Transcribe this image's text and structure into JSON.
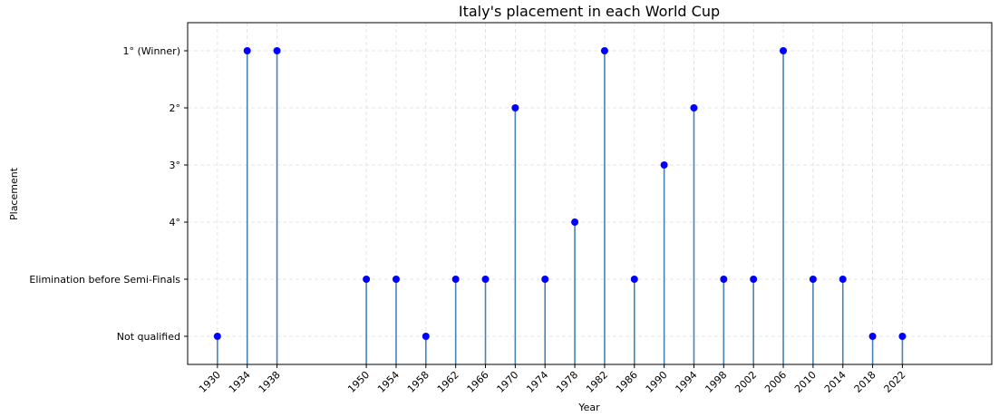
{
  "chart_data": {
    "type": "stem",
    "title": "Italy's placement in each World Cup",
    "xlabel": "Year",
    "ylabel": "Placement",
    "categories": [
      "Not qualified",
      "Elimination before Semi-Finals",
      "4°",
      "3°",
      "2°",
      "1° (Winner)"
    ],
    "x": [
      1930,
      1934,
      1938,
      1950,
      1954,
      1958,
      1962,
      1966,
      1970,
      1974,
      1978,
      1982,
      1986,
      1990,
      1994,
      1998,
      2002,
      2006,
      2010,
      2014,
      2018,
      2022
    ],
    "placement": [
      "Not qualified",
      "1° (Winner)",
      "1° (Winner)",
      "Elimination before Semi-Finals",
      "Elimination before Semi-Finals",
      "Not qualified",
      "Elimination before Semi-Finals",
      "Elimination before Semi-Finals",
      "2°",
      "Elimination before Semi-Finals",
      "4°",
      "1° (Winner)",
      "Elimination before Semi-Finals",
      "3°",
      "2°",
      "Elimination before Semi-Finals",
      "Elimination before Semi-Finals",
      "1° (Winner)",
      "Elimination before Semi-Finals",
      "Elimination before Semi-Finals",
      "Not qualified",
      "Not qualified"
    ],
    "xlim": [
      1926,
      2034
    ],
    "grid": true,
    "colors": {
      "marker": "#0000ff",
      "stem": "#4682b4"
    }
  }
}
